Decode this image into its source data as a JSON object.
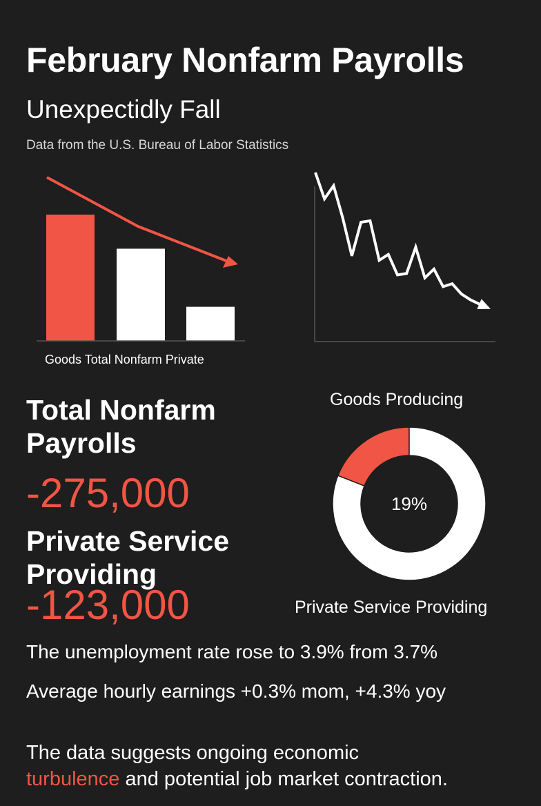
{
  "header": {
    "title": "February Nonfarm Payrolls",
    "subtitle": "Unexpectidly Fall",
    "source": "Data from the U.S. Bureau of Labor Statistics"
  },
  "colors": {
    "background": "#1e1e1e",
    "accent": "#f15545",
    "foreground": "#ffffff"
  },
  "chart_data": [
    {
      "type": "bar",
      "categories_label": "Goods Total Nonfarm Private",
      "categories": [
        "Goods",
        "Total Nonfarm",
        "Private"
      ],
      "values": [
        100,
        73,
        27
      ],
      "bar_colors": [
        "#f15545",
        "#ffffff",
        "#ffffff"
      ],
      "trend_arrow": "downward",
      "axes": false,
      "grid": false
    },
    {
      "type": "line",
      "series": [
        {
          "values": [
            100,
            82,
            91,
            69,
            43,
            66,
            67,
            40,
            44,
            30,
            31,
            49,
            28,
            34,
            22,
            24,
            17,
            13,
            10
          ]
        }
      ],
      "trend_arrow": "downward",
      "grid": false
    },
    {
      "type": "pie",
      "style": "donut",
      "slices": [
        {
          "label": "Goods Producing",
          "value": 19,
          "color": "#f15545"
        },
        {
          "label": "Private Service Providing",
          "value": 81,
          "color": "#ffffff"
        }
      ],
      "center_label": "19%",
      "top_label": "Goods Producing",
      "bottom_label": "Private Service Providing"
    }
  ],
  "stats": {
    "total_label": "Total Nonfarm Payrolls",
    "total_value": "-275,000",
    "private_label": "Private Service Providing",
    "private_value": "-123,000"
  },
  "facts": {
    "unemployment": "The unemployment rate rose to 3.9% from 3.7%",
    "earnings": "Average hourly earnings +0.3% mom, +4.3% yoy"
  },
  "conclusion": {
    "before": "The data suggests ongoing economic",
    "highlight": "turbulence",
    "after": " and potential job market contraction."
  }
}
